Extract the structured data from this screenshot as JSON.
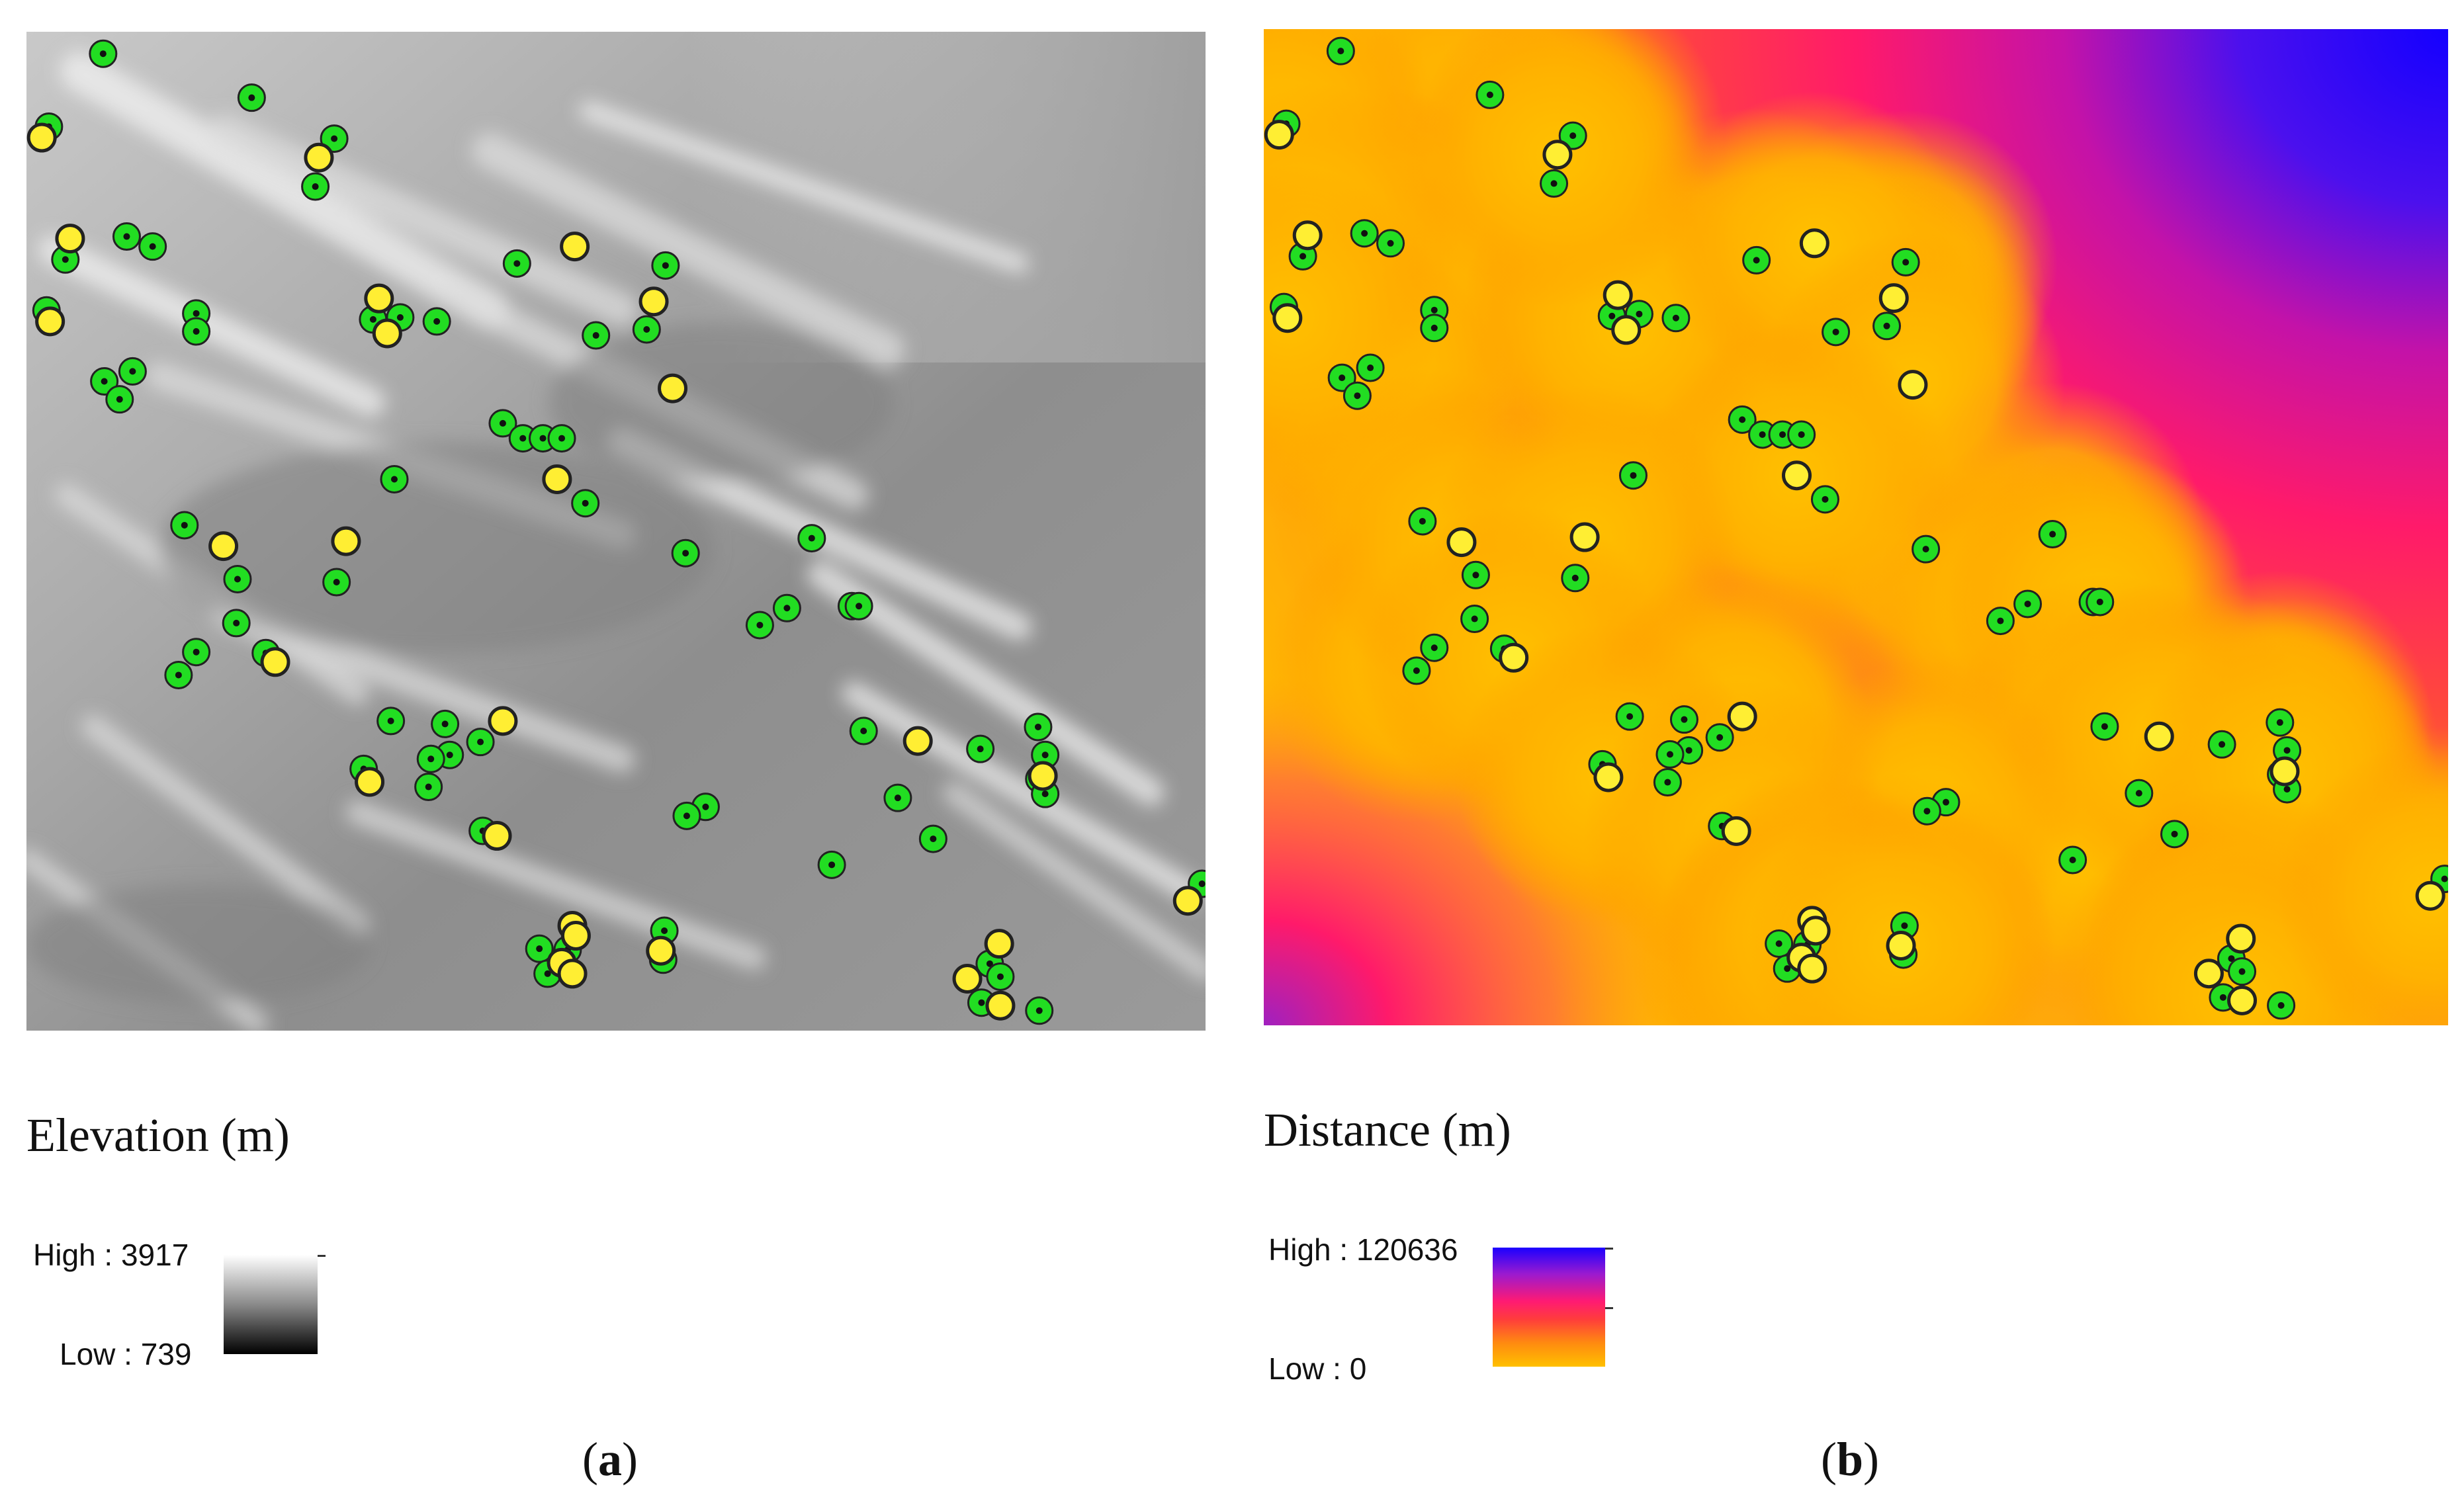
{
  "panel_a": {
    "legend_title": "Elevation (m)",
    "high_label": "High : 3917",
    "low_label": "Low : 739",
    "caption_open": "(",
    "caption_letter": "a",
    "caption_close": ")",
    "ramp_colors": [
      "#ffffff",
      "#8a8a8a",
      "#000000"
    ]
  },
  "panel_b": {
    "legend_title": "Distance (m)",
    "high_label": "High : 120636",
    "low_label": "Low : 0",
    "caption_open": "(",
    "caption_letter": "b",
    "caption_close": ")",
    "ramp_colors": [
      "#1b00ff",
      "#9a1ad0",
      "#ff1a73",
      "#ff3c3c",
      "#ff8a10",
      "#ffc000"
    ]
  },
  "marker_colors": {
    "green": "#22dd22",
    "yellow": "#ffee33",
    "outline": "#222222"
  }
}
